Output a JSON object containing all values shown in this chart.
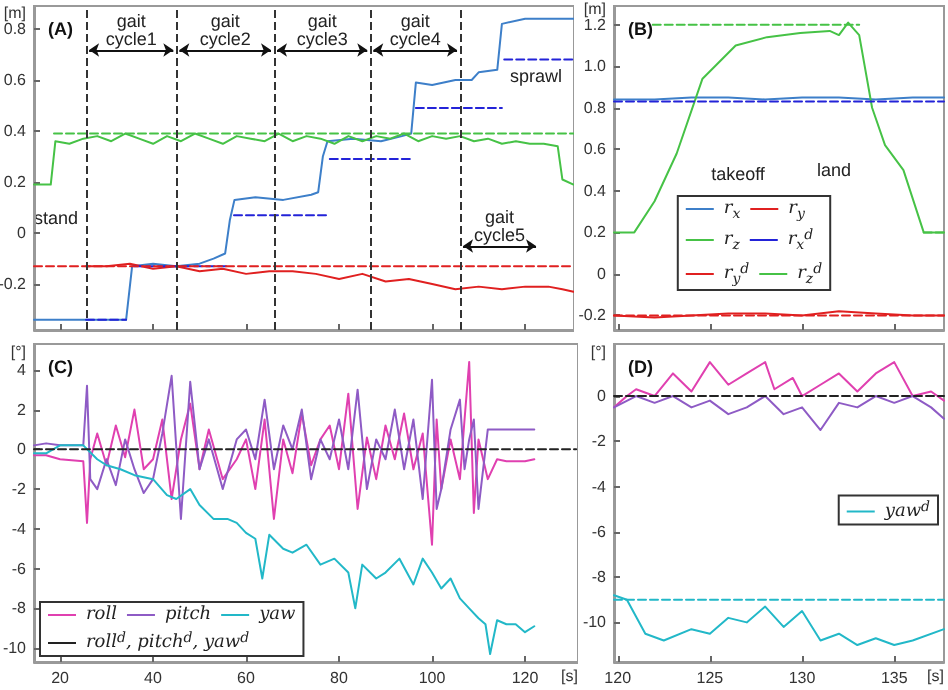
{
  "chart_data": [
    {
      "type": "line",
      "title": "(A)",
      "ylabel": "[m]",
      "xlim": [
        14.4,
        130.5
      ],
      "xticks": [
        20,
        40,
        60,
        80,
        100,
        120
      ],
      "ylim": [
        -0.38,
        0.89
      ],
      "yticks": [
        -0.2,
        0,
        0.2,
        0.4,
        0.6,
        0.8
      ],
      "tick_labels": "y",
      "ref_lines": [
        {
          "axis": "x",
          "value": 25.6,
          "color": "#333333",
          "line_style": "dashed"
        },
        {
          "axis": "x",
          "value": 45,
          "color": "#333333",
          "line_style": "dashed"
        },
        {
          "axis": "x",
          "value": 66,
          "color": "#333333",
          "line_style": "dashed"
        },
        {
          "axis": "x",
          "value": 86.7,
          "color": "#333333",
          "line_style": "dashed"
        },
        {
          "axis": "x",
          "value": 106,
          "color": "#333333",
          "line_style": "dashed"
        }
      ],
      "annotations": [
        "gait cycle1",
        "gait cycle2",
        "gait cycle3",
        "gait cycle4",
        "gait cycle5",
        "stand",
        "sprawl"
      ],
      "series": [
        {
          "color": "#3d7fc9",
          "x": [
            14.4,
            34.2,
            35.5,
            40,
            45,
            50,
            53,
            55.5,
            56.5,
            57.5,
            62,
            68,
            74,
            75.5,
            76.5,
            77.5,
            83,
            89,
            93.5,
            95.5,
            96.5,
            100,
            105,
            108.5,
            110,
            114,
            115,
            120,
            126,
            130.4
          ],
          "values": [
            -0.34,
            -0.34,
            -0.13,
            -0.12,
            -0.13,
            -0.12,
            -0.1,
            -0.08,
            0.05,
            0.13,
            0.14,
            0.13,
            0.15,
            0.16,
            0.3,
            0.36,
            0.37,
            0.36,
            0.38,
            0.39,
            0.59,
            0.58,
            0.6,
            0.6,
            0.63,
            0.64,
            0.82,
            0.84,
            0.84,
            0.84
          ]
        },
        {
          "color": "#e02020",
          "x": [
            25.6,
            30,
            35,
            40,
            45,
            50,
            55,
            60,
            65,
            70,
            75,
            80,
            85,
            90,
            95,
            100,
            105,
            110,
            115,
            120,
            125,
            128,
            130.4
          ],
          "values": [
            -0.13,
            -0.13,
            -0.12,
            -0.14,
            -0.13,
            -0.15,
            -0.14,
            -0.16,
            -0.15,
            -0.15,
            -0.16,
            -0.18,
            -0.16,
            -0.19,
            -0.18,
            -0.2,
            -0.22,
            -0.21,
            -0.22,
            -0.21,
            -0.21,
            -0.22,
            -0.23
          ]
        },
        {
          "color": "#46c246",
          "x": [
            14.4,
            18,
            19,
            22,
            25,
            28,
            31,
            34,
            37,
            40,
            43,
            46,
            49,
            52,
            55,
            58,
            61,
            64,
            67,
            70,
            73,
            76,
            79,
            82,
            85,
            88,
            91,
            94,
            97,
            100,
            103,
            106,
            109,
            112,
            115,
            118,
            121,
            124,
            127,
            128,
            130.4
          ],
          "values": [
            0.19,
            0.19,
            0.36,
            0.35,
            0.37,
            0.38,
            0.36,
            0.39,
            0.37,
            0.35,
            0.38,
            0.36,
            0.39,
            0.37,
            0.35,
            0.38,
            0.37,
            0.36,
            0.39,
            0.36,
            0.38,
            0.37,
            0.35,
            0.38,
            0.36,
            0.38,
            0.37,
            0.39,
            0.36,
            0.38,
            0.37,
            0.38,
            0.36,
            0.37,
            0.35,
            0.36,
            0.35,
            0.35,
            0.34,
            0.21,
            0.19
          ]
        },
        {
          "color": "#2323d8",
          "line_style": "dashed",
          "x": [
            25.6,
            34.2,
            35,
            35.9,
            55.7,
            56.5,
            57.4,
            77.2,
            77.6,
            78,
            96,
            96.2,
            96.5,
            115,
            115.2,
            115.5,
            130.4
          ],
          "values": [
            -0.34,
            -0.34,
            null,
            -0.13,
            -0.13,
            null,
            0.07,
            0.07,
            null,
            0.29,
            0.29,
            null,
            0.49,
            0.49,
            null,
            0.68,
            0.68
          ]
        },
        {
          "color": "#e02020",
          "line_style": "dashed",
          "x": [
            14.4,
            130.4
          ],
          "values": [
            -0.13,
            -0.13
          ]
        },
        {
          "color": "#46c246",
          "line_style": "dashed",
          "x": [
            18.7,
            130.4
          ],
          "values": [
            0.39,
            0.39
          ]
        }
      ]
    },
    {
      "type": "line",
      "title": "(B)",
      "ylabel": "[m]",
      "xlim": [
        119.8,
        137.7
      ],
      "xticks": [
        120,
        125,
        130,
        135
      ],
      "ylim": [
        -0.27,
        1.29
      ],
      "yticks": [
        -0.2,
        0,
        0.2,
        0.4,
        0.6,
        0.8,
        {
          "value": 1,
          "label": "1.0"
        },
        1.2
      ],
      "tick_labels": "y",
      "legend": "bottom",
      "annotations": [
        "takeoff",
        "land"
      ],
      "series": [
        {
          "name": "r$_{x}$",
          "color": "#3d7fc9",
          "x": [
            119.8,
            122,
            124,
            126,
            128,
            130,
            132,
            134,
            136,
            137.7
          ],
          "values": [
            0.84,
            0.84,
            0.85,
            0.85,
            0.84,
            0.85,
            0.85,
            0.84,
            0.85,
            0.85
          ]
        },
        {
          "name": "r$_{y}$",
          "color": "#e02020",
          "x": [
            119.8,
            122,
            124,
            126,
            128,
            130,
            132,
            134,
            136,
            137.7
          ],
          "values": [
            -0.2,
            -0.21,
            -0.2,
            -0.19,
            -0.19,
            -0.2,
            -0.18,
            -0.19,
            -0.2,
            -0.2
          ]
        },
        {
          "name": "r$_{z}$",
          "color": "#46c246",
          "x": [
            119.8,
            120.9,
            122,
            123.2,
            124.6,
            126.4,
            128.1,
            129.9,
            131.5,
            132,
            132.5,
            133.1,
            133.8,
            134.5,
            135.5,
            136.6,
            137.7
          ],
          "values": [
            0.2,
            0.2,
            0.35,
            0.58,
            0.94,
            1.1,
            1.14,
            1.16,
            1.17,
            1.15,
            1.21,
            1.15,
            0.8,
            0.62,
            0.5,
            0.2,
            0.2
          ]
        },
        {
          "name": "r$_{x}$$^{d}$",
          "color": "#2323d8",
          "line_style": "dashed",
          "x": [
            119.8,
            137.7
          ],
          "values": [
            0.83,
            0.83
          ]
        },
        {
          "name": "r$_{y}$$^{d}$",
          "color": "#e02020",
          "line_style": "dashed",
          "x": [
            119.8,
            137.7
          ],
          "values": [
            -0.2,
            -0.2
          ]
        },
        {
          "name": "r$_{z}$$^{d}$",
          "color": "#46c246",
          "line_style": "dashed",
          "x": [
            121.9,
            133.1,
            133.5,
            136.6,
            137.7
          ],
          "values": [
            1.2,
            1.2,
            null,
            0.2,
            0.2
          ]
        }
      ]
    },
    {
      "type": "line",
      "title": "(C)",
      "xlabel": "[s]",
      "ylabel": "[°]",
      "xlim": [
        14.4,
        131.4
      ],
      "xticks": [
        20,
        40,
        60,
        80,
        100,
        120
      ],
      "ylim": [
        -10.7,
        5.3
      ],
      "yticks": [
        -10,
        -8,
        -6,
        -4,
        -2,
        0,
        2,
        4
      ],
      "legend": "bottom left",
      "series": [
        {
          "name": "roll",
          "color": "#e040b0",
          "x": [
            14.4,
            17,
            20,
            25,
            25.8,
            26.5,
            28,
            30,
            32,
            34,
            36,
            38,
            40,
            42,
            44,
            46,
            48,
            50,
            52,
            55,
            58,
            60,
            62,
            64,
            66,
            68,
            70,
            72,
            74,
            76,
            78,
            80,
            82,
            84,
            86,
            88,
            90,
            92,
            94,
            96,
            98,
            100,
            101,
            102,
            104,
            106,
            107,
            108,
            109,
            110,
            112,
            114,
            116,
            118,
            120,
            122
          ],
          "values": [
            -0.3,
            -0.3,
            -0.5,
            -0.6,
            -3.7,
            -0.5,
            0.8,
            -0.8,
            1.2,
            -0.4,
            2,
            -1,
            -0.5,
            1.5,
            -2.5,
            0.5,
            2.3,
            -1,
            1,
            -1.5,
            -0.5,
            0.5,
            -2,
            1.5,
            -3.5,
            0.5,
            -1.2,
            1.8,
            -0.8,
            0.5,
            1.2,
            -1,
            2.8,
            -3,
            0.6,
            -1.5,
            1.2,
            -0.5,
            1.8,
            -1,
            0.8,
            -4.8,
            1.5,
            -2,
            0.5,
            -1.5,
            1.5,
            4.4,
            -3.2,
            0.5,
            -1.5,
            -0.5,
            -0.6,
            -0.6,
            -0.6,
            -0.5
          ]
        },
        {
          "name": "pitch",
          "color": "#8e5bc5",
          "x": [
            14.4,
            17,
            20,
            25,
            25.8,
            26.5,
            28,
            30,
            32,
            34,
            36,
            38,
            40,
            42,
            44,
            46,
            48,
            50,
            52,
            55,
            58,
            60,
            62,
            64,
            66,
            68,
            70,
            72,
            74,
            76,
            78,
            80,
            82,
            84,
            86,
            88,
            90,
            92,
            94,
            96,
            98,
            100,
            101,
            102,
            104,
            106,
            107,
            108,
            109,
            110,
            112,
            114,
            116,
            118,
            120,
            122
          ],
          "values": [
            0.2,
            0.3,
            0.2,
            0.2,
            3.2,
            -1.5,
            -2,
            -0.5,
            -1.8,
            0.5,
            -1,
            -2.2,
            -1.5,
            0.8,
            3.7,
            -3.5,
            3.4,
            -1,
            0.5,
            -2,
            0.5,
            1,
            -0.5,
            2.5,
            -1,
            1.2,
            0,
            2,
            -1.5,
            0.5,
            -0.5,
            1.5,
            -1,
            3,
            -2,
            0.5,
            -0.5,
            2,
            -1,
            1.5,
            -2.5,
            3.5,
            -3,
            -2,
            1,
            2.5,
            -1,
            0.5,
            1.5,
            -3,
            1,
            1,
            1,
            1,
            1,
            1
          ]
        },
        {
          "name": "yaw",
          "color": "#22b8c8",
          "x": [
            14.4,
            17,
            20,
            25,
            28,
            30,
            33,
            36,
            40,
            43,
            45,
            48,
            50,
            53,
            56,
            58,
            60,
            62,
            63.5,
            65,
            68,
            70,
            73,
            76,
            79,
            82,
            83.5,
            85,
            88,
            90,
            93,
            96,
            98,
            100,
            102,
            104,
            106,
            108,
            110,
            111.5,
            112.5,
            114,
            116,
            118,
            120,
            122
          ],
          "values": [
            -0.2,
            -0.2,
            0.2,
            0.2,
            -0.5,
            -0.8,
            -1,
            -1.3,
            -1.5,
            -2.3,
            -2.5,
            -2,
            -2.8,
            -3.5,
            -3.5,
            -3.7,
            -4.2,
            -4.5,
            -6.5,
            -4.3,
            -5,
            -5.2,
            -4.8,
            -5.8,
            -5.5,
            -6.2,
            -8,
            -5.8,
            -6.5,
            -6.2,
            -5.5,
            -6.8,
            -5.5,
            -6.2,
            -7,
            -6.5,
            -7.5,
            -8,
            -8.5,
            -8.8,
            -10.3,
            -8.6,
            -8.8,
            -8.8,
            -9.2,
            -8.9
          ]
        },
        {
          "name": "roll$^{d}$, pitch$^{d}$, yaw$^{d}$",
          "color": "#222222",
          "line_style": "dashed",
          "x": [
            14.4,
            131
          ],
          "values": [
            0,
            0
          ]
        }
      ]
    },
    {
      "type": "line",
      "title": "(D)",
      "xlabel": "[s]",
      "ylabel": "[°]",
      "xlim": [
        119.8,
        137.7
      ],
      "xticks": [
        120,
        125,
        130,
        135
      ],
      "ylim": [
        -11.75,
        2.3
      ],
      "yticks": [
        -10,
        -8,
        -6,
        -4,
        -2,
        0
      ],
      "legend": "right",
      "series": [
        {
          "color": "#e040b0",
          "x": [
            119.8,
            120.5,
            121,
            122,
            123,
            124,
            125,
            126,
            127,
            128,
            128.5,
            129.5,
            130,
            131,
            132,
            133,
            134,
            135,
            136,
            137,
            137.7
          ],
          "values": [
            -0.5,
            0,
            0.3,
            0,
            1,
            0.2,
            1.5,
            0.5,
            1,
            1.5,
            0.3,
            0.8,
            0,
            0.5,
            1,
            0.2,
            1,
            1.5,
            0,
            0.2,
            -0.2
          ]
        },
        {
          "color": "#8e5bc5",
          "x": [
            119.8,
            121,
            122,
            123,
            124,
            125,
            126,
            127,
            128,
            129,
            130,
            131,
            132,
            133,
            134,
            135,
            136,
            137,
            137.7
          ],
          "values": [
            -0.5,
            0,
            -0.3,
            0,
            -0.5,
            -0.2,
            -0.8,
            -0.5,
            0,
            -0.8,
            -0.5,
            -1.5,
            -0.3,
            -0.5,
            0,
            -0.3,
            0,
            -0.5,
            -1
          ]
        },
        {
          "color": "#222222",
          "line_style": "dashed",
          "x": [
            119.8,
            137.7
          ],
          "values": [
            0,
            0
          ]
        },
        {
          "color": "#22b8c8",
          "x": [
            119.8,
            120.5,
            121.5,
            122.5,
            124,
            125,
            126,
            127,
            128,
            129,
            130,
            131,
            132,
            133,
            134,
            135,
            136,
            137.7
          ],
          "values": [
            -8.8,
            -9,
            -10.5,
            -10.8,
            -10.3,
            -10.5,
            -9.8,
            -10,
            -9.3,
            -10.2,
            -9.5,
            -10.8,
            -10.5,
            -11,
            -10.7,
            -11,
            -10.8,
            -10.3
          ]
        },
        {
          "name": "yaw$^{d}$",
          "color": "#22b8c8",
          "line_style": "dashed",
          "x": [
            119.8,
            137.7
          ],
          "values": [
            -9,
            -9
          ]
        }
      ]
    }
  ]
}
